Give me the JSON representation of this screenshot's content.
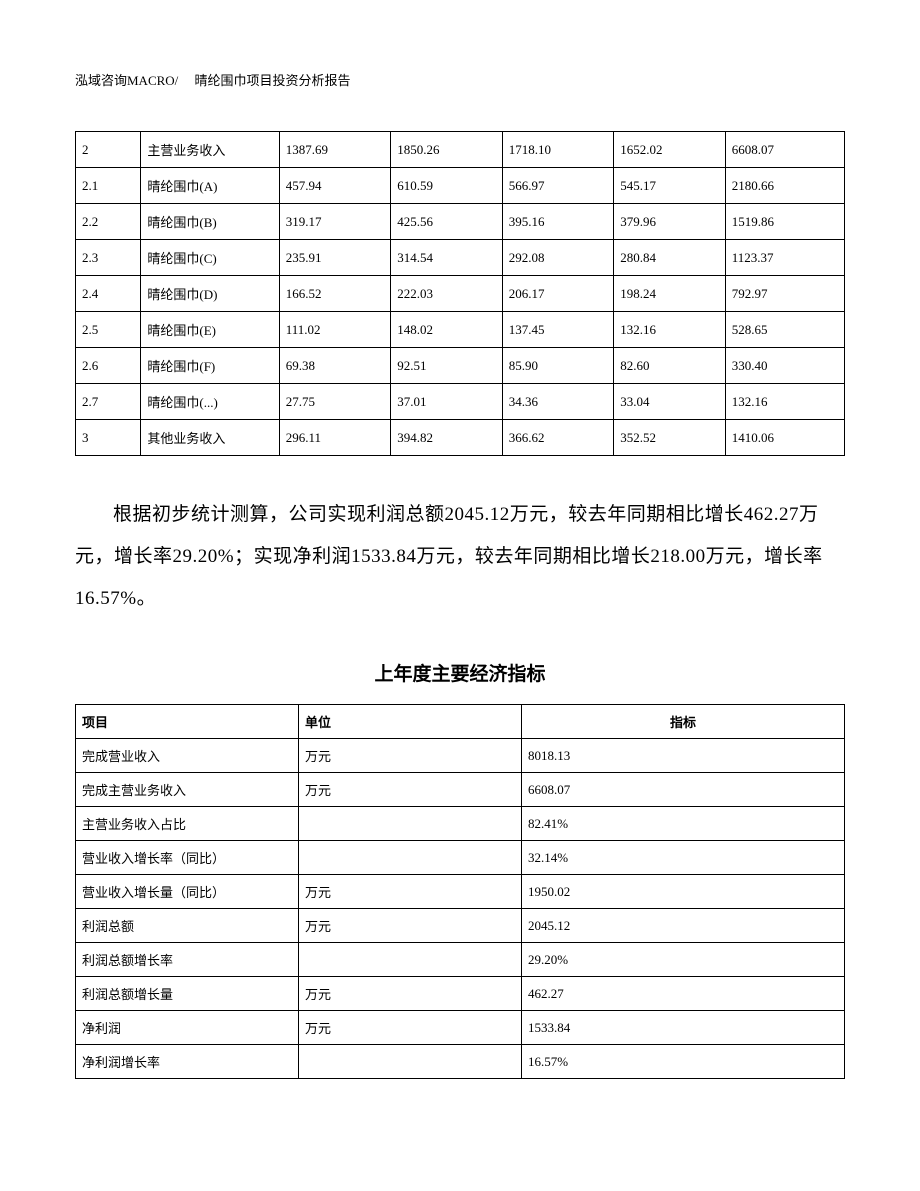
{
  "header": "泓域咨询MACRO/　 晴纶围巾项目投资分析报告",
  "table1": {
    "rows": [
      [
        "2",
        "主营业务收入",
        "1387.69",
        "1850.26",
        "1718.10",
        "1652.02",
        "6608.07"
      ],
      [
        "2.1",
        "晴纶围巾(A)",
        "457.94",
        "610.59",
        "566.97",
        "545.17",
        "2180.66"
      ],
      [
        "2.2",
        "晴纶围巾(B)",
        "319.17",
        "425.56",
        "395.16",
        "379.96",
        "1519.86"
      ],
      [
        "2.3",
        "晴纶围巾(C)",
        "235.91",
        "314.54",
        "292.08",
        "280.84",
        "1123.37"
      ],
      [
        "2.4",
        "晴纶围巾(D)",
        "166.52",
        "222.03",
        "206.17",
        "198.24",
        "792.97"
      ],
      [
        "2.5",
        "晴纶围巾(E)",
        "111.02",
        "148.02",
        "137.45",
        "132.16",
        "528.65"
      ],
      [
        "2.6",
        "晴纶围巾(F)",
        "69.38",
        "92.51",
        "85.90",
        "82.60",
        "330.40"
      ],
      [
        "2.7",
        "晴纶围巾(...)",
        "27.75",
        "37.01",
        "34.36",
        "33.04",
        "132.16"
      ],
      [
        "3",
        "其他业务收入",
        "296.11",
        "394.82",
        "366.62",
        "352.52",
        "1410.06"
      ]
    ]
  },
  "paragraph": "根据初步统计测算，公司实现利润总额2045.12万元，较去年同期相比增长462.27万元，增长率29.20%；实现净利润1533.84万元，较去年同期相比增长218.00万元，增长率16.57%。",
  "section_title": "上年度主要经济指标",
  "table2": {
    "headers": [
      "项目",
      "单位",
      "指标"
    ],
    "rows": [
      [
        "完成营业收入",
        "万元",
        "8018.13"
      ],
      [
        "完成主营业务收入",
        "万元",
        "6608.07"
      ],
      [
        "主营业务收入占比",
        "",
        "82.41%"
      ],
      [
        "营业收入增长率（同比）",
        "",
        "32.14%"
      ],
      [
        "营业收入增长量（同比）",
        "万元",
        "1950.02"
      ],
      [
        "利润总额",
        "万元",
        "2045.12"
      ],
      [
        "利润总额增长率",
        "",
        "29.20%"
      ],
      [
        "利润总额增长量",
        "万元",
        "462.27"
      ],
      [
        "净利润",
        "万元",
        "1533.84"
      ],
      [
        "净利润增长率",
        "",
        "16.57%"
      ]
    ]
  }
}
